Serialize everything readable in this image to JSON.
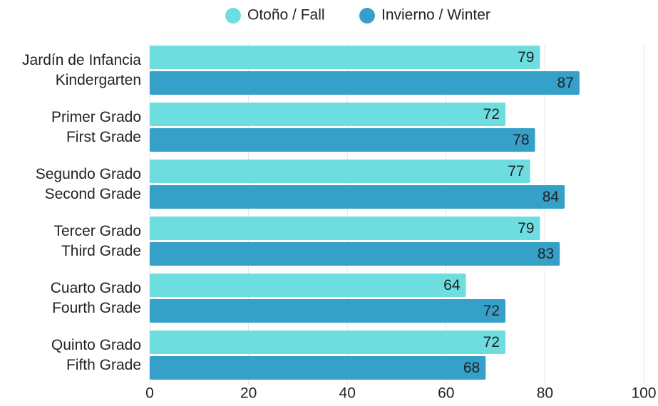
{
  "chart_data": {
    "type": "bar",
    "orientation": "horizontal",
    "categories": [
      "Jardín de Infancia\nKindergarten",
      "Primer Grado\nFirst Grade",
      "Segundo Grado\nSecond Grade",
      "Tercer Grado\nThird Grade",
      "Cuarto Grado\nFourth Grade",
      "Quinto Grado\nFifth Grade"
    ],
    "series": [
      {
        "name": "Otoño / Fall",
        "color": "#6ddde0",
        "values": [
          79,
          72,
          77,
          79,
          64,
          72
        ]
      },
      {
        "name": "Invierno / Winter",
        "color": "#35a0c8",
        "values": [
          87,
          78,
          84,
          83,
          72,
          68
        ]
      }
    ],
    "xlim": [
      0,
      100
    ],
    "xticks": [
      0,
      20,
      40,
      60,
      80,
      100
    ],
    "grid": true,
    "legend": "top"
  }
}
